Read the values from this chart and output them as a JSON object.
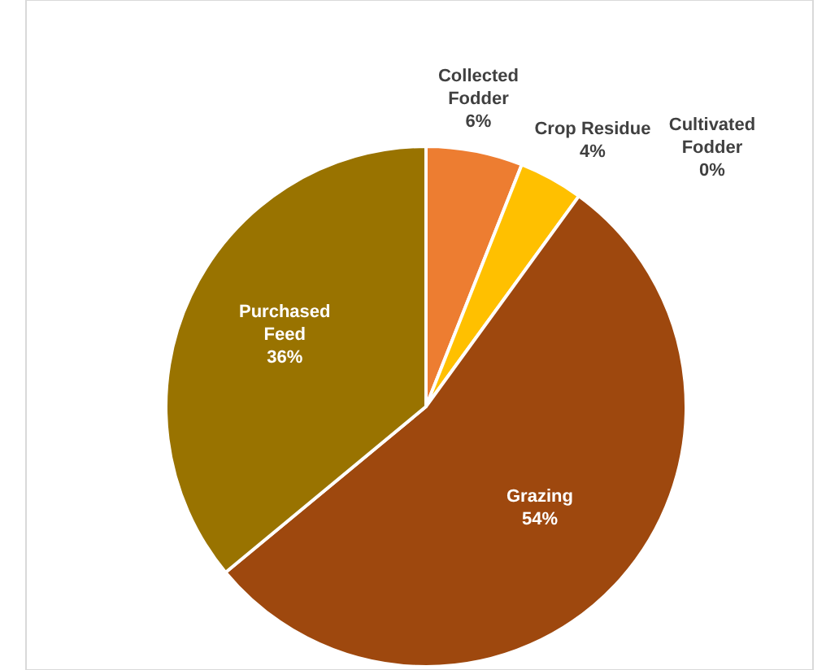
{
  "chart_data": {
    "type": "pie",
    "categories": [
      "Collected Fodder",
      "Crop Residue",
      "Cultivated Fodder",
      "Grazing",
      "Purchased Feed"
    ],
    "values": [
      6,
      4,
      0,
      54,
      36
    ],
    "value_labels": [
      "6%",
      "4%",
      "0%",
      "54%",
      "36%"
    ],
    "colors": [
      "#ed7d31",
      "#ffc000",
      "#c55a11",
      "#9e480e",
      "#997300"
    ]
  }
}
